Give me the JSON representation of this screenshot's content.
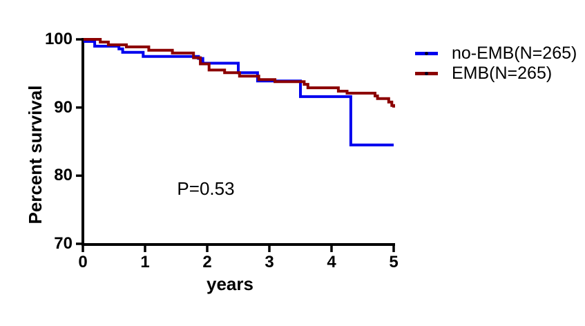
{
  "figure": {
    "background": "#ffffff",
    "text_color": "#000000"
  },
  "chart_data": {
    "type": "line",
    "subtype": "kaplan-meier-step",
    "title": "",
    "xlabel": "years",
    "ylabel": "Percent survival",
    "annotation": "P=0.53",
    "xlim": [
      0,
      5
    ],
    "ylim": [
      70,
      100
    ],
    "xticks": [
      0,
      1,
      2,
      3,
      4,
      5
    ],
    "yticks": [
      100,
      90,
      80,
      70
    ],
    "grid": false,
    "axis_color": "#000000",
    "legend_position": "right-top",
    "series": [
      {
        "name": "no-EMB(N=265)",
        "color": "#0000ee",
        "points": [
          [
            0,
            99.7
          ],
          [
            0.19,
            99.0
          ],
          [
            0.58,
            98.6
          ],
          [
            0.64,
            98.1
          ],
          [
            0.97,
            97.5
          ],
          [
            1.86,
            97.2
          ],
          [
            1.93,
            96.5
          ],
          [
            2.5,
            95.1
          ],
          [
            2.81,
            93.9
          ],
          [
            3.5,
            91.6
          ],
          [
            4.31,
            84.5
          ],
          [
            5.0,
            84.5
          ]
        ]
      },
      {
        "name": "EMB(N=265)",
        "color": "#8b0000",
        "points": [
          [
            0,
            100
          ],
          [
            0.28,
            99.6
          ],
          [
            0.41,
            99.2
          ],
          [
            0.7,
            98.9
          ],
          [
            1.06,
            98.4
          ],
          [
            1.44,
            98.0
          ],
          [
            1.78,
            97.3
          ],
          [
            1.89,
            96.4
          ],
          [
            2.03,
            95.5
          ],
          [
            2.28,
            95.1
          ],
          [
            2.52,
            94.6
          ],
          [
            2.83,
            94.1
          ],
          [
            3.09,
            93.8
          ],
          [
            3.56,
            93.4
          ],
          [
            3.62,
            92.9
          ],
          [
            4.11,
            92.4
          ],
          [
            4.25,
            92.1
          ],
          [
            4.7,
            91.7
          ],
          [
            4.74,
            91.3
          ],
          [
            4.92,
            90.8
          ],
          [
            4.97,
            90.3
          ],
          [
            5.0,
            90.0
          ]
        ]
      }
    ]
  }
}
